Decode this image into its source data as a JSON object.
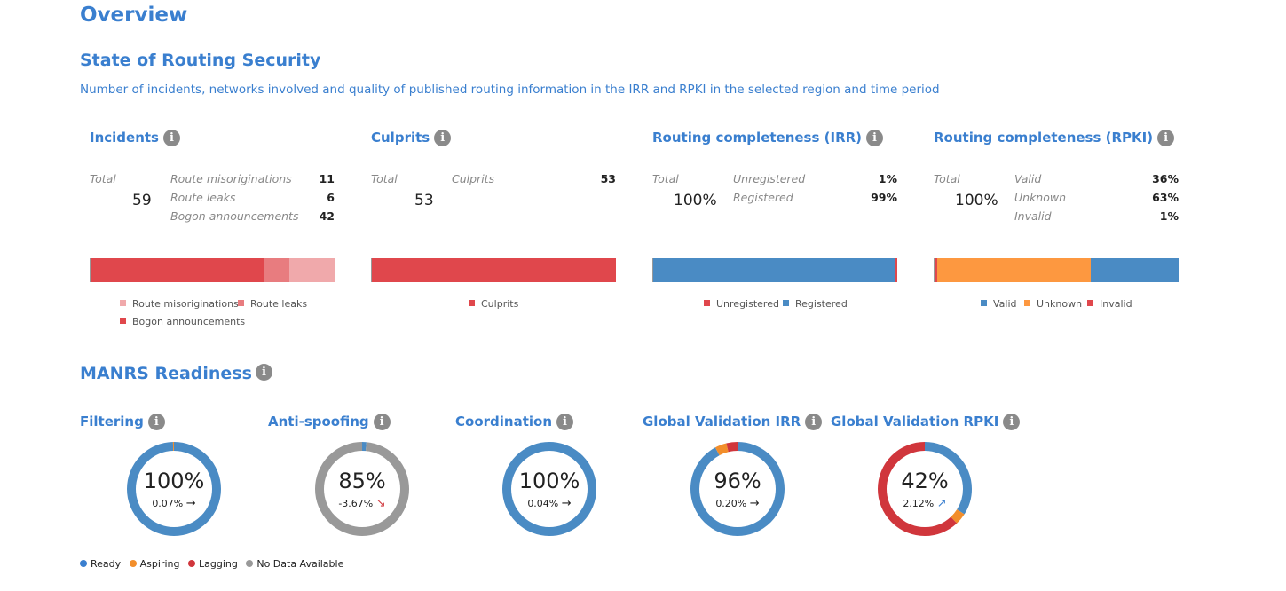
{
  "overview_title": "Overview",
  "section_title": "State of Routing Security",
  "section_subtitle": "Number of incidents, networks involved and quality of published routing information in the IRR and RPKI in the selected region and time period",
  "info_glyph": "i",
  "colors": {
    "title_blue": "#3a7fcf",
    "red": "#e0474c",
    "red_mid": "#e87c7f",
    "red_light": "#f0a9ab",
    "blue": "#4a8bc4",
    "orange": "#fd9840",
    "gray": "#999999",
    "orange_dot": "#f28e2b"
  },
  "incidents": {
    "title": "Incidents",
    "total_label": "Total",
    "total_value": "59",
    "rows": [
      {
        "label": "Route misoriginations",
        "value": "11"
      },
      {
        "label": "Route leaks",
        "value": "6"
      },
      {
        "label": "Bogon announcements",
        "value": "42"
      }
    ],
    "bar": [
      {
        "name": "Bogon announcements",
        "value": 42,
        "color": "#e0474c"
      },
      {
        "name": "Route leaks",
        "value": 6,
        "color": "#e87c7f"
      },
      {
        "name": "Route misoriginations",
        "value": 11,
        "color": "#f0a9ab"
      }
    ],
    "legend": [
      "Route misoriginations",
      "Route leaks",
      "Bogon announcements"
    ]
  },
  "culprits": {
    "title": "Culprits",
    "total_label": "Total",
    "total_value": "53",
    "rows": [
      {
        "label": "Culprits",
        "value": "53"
      }
    ],
    "bar": [
      {
        "name": "Culprits",
        "value": 53,
        "color": "#e0474c"
      }
    ],
    "legend": [
      "Culprits"
    ]
  },
  "irr": {
    "title": "Routing completeness (IRR)",
    "total_label": "Total",
    "total_value": "100%",
    "rows": [
      {
        "label": "Unregistered",
        "value": "1%"
      },
      {
        "label": "Registered",
        "value": "99%"
      }
    ],
    "bar": [
      {
        "name": "Registered",
        "value": 99,
        "color": "#4a8bc4"
      },
      {
        "name": "Unregistered",
        "value": 1,
        "color": "#e0474c"
      }
    ],
    "legend": [
      "Unregistered",
      "Registered"
    ]
  },
  "rpki": {
    "title": "Routing completeness (RPKI)",
    "total_label": "Total",
    "total_value": "100%",
    "rows": [
      {
        "label": "Valid",
        "value": "36%"
      },
      {
        "label": "Unknown",
        "value": "63%"
      },
      {
        "label": "Invalid",
        "value": "1%"
      }
    ],
    "bar": [
      {
        "name": "Invalid",
        "value": 1,
        "color": "#e0474c"
      },
      {
        "name": "Unknown",
        "value": 63,
        "color": "#fd9840"
      },
      {
        "name": "Valid",
        "value": 36,
        "color": "#4a8bc4"
      }
    ],
    "legend": [
      "Valid",
      "Unknown",
      "Invalid"
    ]
  },
  "manrs": {
    "title": "MANRS Readiness",
    "cards": [
      {
        "title": "Filtering",
        "pct": "100%",
        "change": "0.07%",
        "arrow": "→",
        "arrow_color": "#222222",
        "segments": [
          {
            "name": "Ready",
            "value": 99.5,
            "color": "#4a8bc4"
          },
          {
            "name": "Aspiring",
            "value": 0.5,
            "color": "#f28e2b"
          }
        ]
      },
      {
        "title": "Anti-spoofing",
        "pct": "85%",
        "change": "-3.67%",
        "arrow": "↘",
        "arrow_color": "#d0363c",
        "segments": [
          {
            "name": "Ready",
            "value": 1.5,
            "color": "#4a8bc4"
          },
          {
            "name": "No Data Available",
            "value": 98.5,
            "color": "#999999"
          }
        ]
      },
      {
        "title": "Coordination",
        "pct": "100%",
        "change": "0.04%",
        "arrow": "→",
        "arrow_color": "#222222",
        "segments": [
          {
            "name": "Ready",
            "value": 100,
            "color": "#4a8bc4"
          }
        ]
      },
      {
        "title": "Global Validation IRR",
        "pct": "96%",
        "change": "0.20%",
        "arrow": "→",
        "arrow_color": "#222222",
        "segments": [
          {
            "name": "Ready",
            "value": 92,
            "color": "#4a8bc4"
          },
          {
            "name": "Aspiring",
            "value": 4,
            "color": "#f28e2b"
          },
          {
            "name": "Lagging",
            "value": 4,
            "color": "#d0363c"
          }
        ]
      },
      {
        "title": "Global Validation RPKI",
        "pct": "42%",
        "change": "2.12%",
        "arrow": "↗",
        "arrow_color": "#3a7fcf",
        "segments": [
          {
            "name": "Ready",
            "value": 34,
            "color": "#4a8bc4"
          },
          {
            "name": "Aspiring",
            "value": 4,
            "color": "#f28e2b"
          },
          {
            "name": "Lagging",
            "value": 62,
            "color": "#d0363c"
          }
        ]
      }
    ],
    "legend": [
      {
        "label": "Ready",
        "color": "#3a7fcf"
      },
      {
        "label": "Aspiring",
        "color": "#f28e2b"
      },
      {
        "label": "Lagging",
        "color": "#d0363c"
      },
      {
        "label": "No Data Available",
        "color": "#999999"
      }
    ]
  }
}
